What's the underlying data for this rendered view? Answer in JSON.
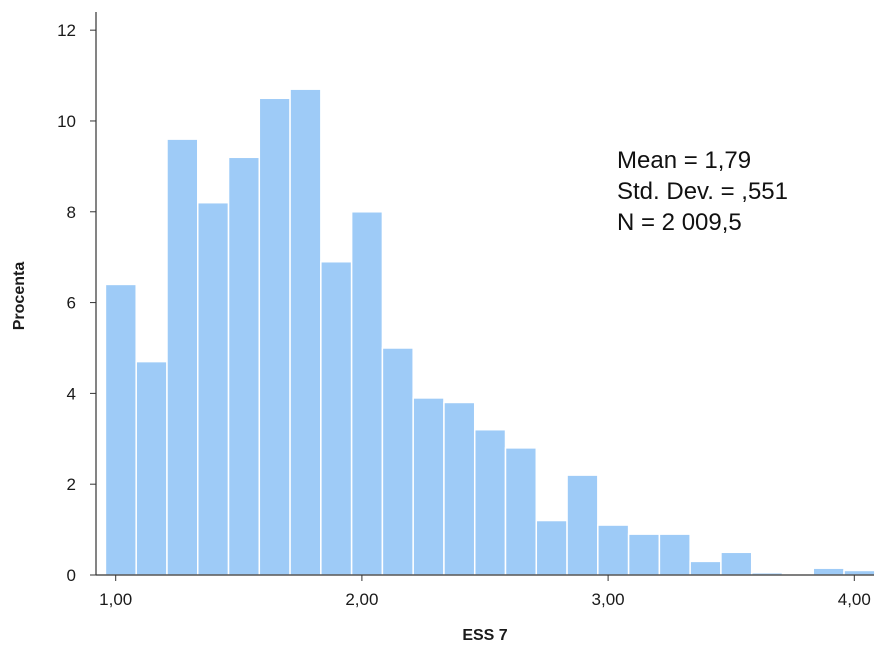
{
  "chart_data": {
    "type": "bar",
    "subtype": "histogram",
    "xlabel": "ESS 7",
    "ylabel": "Procenta",
    "xlim": [
      0.92,
      4.08
    ],
    "ylim": [
      0,
      12.4
    ],
    "x_ticks": [
      {
        "value": 1.0,
        "label": "1,00"
      },
      {
        "value": 2.0,
        "label": "2,00"
      },
      {
        "value": 3.0,
        "label": "3,00"
      },
      {
        "value": 4.0,
        "label": "4,00"
      }
    ],
    "y_ticks": [
      {
        "value": 0,
        "label": "0"
      },
      {
        "value": 2,
        "label": "2"
      },
      {
        "value": 4,
        "label": "4"
      },
      {
        "value": 6,
        "label": "6"
      },
      {
        "value": 8,
        "label": "8"
      },
      {
        "value": 10,
        "label": "10"
      },
      {
        "value": 12,
        "label": "12"
      }
    ],
    "bin_width": 0.125,
    "bins_start": [
      0.9583,
      1.0833,
      1.2083,
      1.3333,
      1.4583,
      1.5833,
      1.7083,
      1.8333,
      1.9583,
      2.0833,
      2.2083,
      2.3333,
      2.4583,
      2.5833,
      2.7083,
      2.8333,
      2.9583,
      3.0833,
      3.2083,
      3.3333,
      3.4583,
      3.5833,
      3.7083,
      3.8333,
      3.9583
    ],
    "values": [
      6.4,
      4.7,
      9.6,
      8.2,
      9.2,
      10.5,
      10.7,
      6.9,
      8.0,
      5.0,
      3.9,
      3.8,
      3.2,
      2.8,
      1.2,
      2.2,
      1.1,
      0.9,
      0.9,
      0.3,
      0.5,
      0.05,
      0.0,
      0.15,
      0.1
    ],
    "bar_color": "#9ecbf7",
    "bar_edge_color": "#ffffff",
    "grid": false,
    "stats": {
      "mean": "Mean = 1,79",
      "std": "Std. Dev. = ,551",
      "n": "N = 2 009,5"
    }
  }
}
